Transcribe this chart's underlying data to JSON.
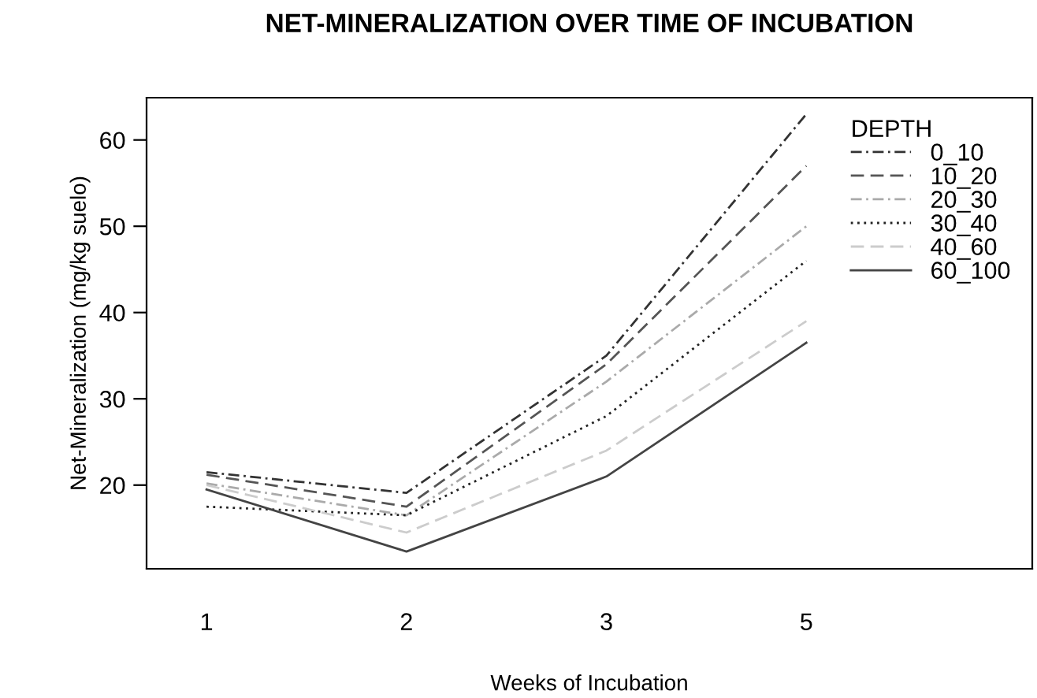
{
  "chart_data": {
    "type": "line",
    "title": "NET-MINERALIZATION OVER TIME OF INCUBATION",
    "xlabel": "Weeks of Incubation",
    "ylabel": "Net-Mineralization (mg/kg suelo)",
    "legend_title": "DEPTH",
    "legend": "top right",
    "grid": false,
    "marker": "none",
    "categories": [
      "1",
      "2",
      "3",
      "5"
    ],
    "ylim": [
      10.3,
      64.9
    ],
    "yticks": [
      20,
      30,
      40,
      50,
      60
    ],
    "series": [
      {
        "name": "0_10",
        "color": "#333333",
        "line_style": "dashdot",
        "values": [
          21.5,
          19.1,
          35,
          63
        ]
      },
      {
        "name": "10_20",
        "color": "#555555",
        "line_style": "dashed",
        "values": [
          21.2,
          17.5,
          34,
          57
        ]
      },
      {
        "name": "20_30",
        "color": "#aaaaaa",
        "line_style": "dashdot",
        "values": [
          20.2,
          16.5,
          32,
          50
        ]
      },
      {
        "name": "30_40",
        "color": "#222222",
        "line_style": "dotted",
        "values": [
          17.5,
          16.5,
          28,
          46
        ]
      },
      {
        "name": "40_60",
        "color": "#cccccc",
        "line_style": "dashed",
        "values": [
          20,
          14.5,
          24,
          39
        ]
      },
      {
        "name": "60_100",
        "color": "#444444",
        "line_style": "solid",
        "values": [
          19.5,
          12.3,
          21,
          36.5
        ]
      }
    ]
  }
}
